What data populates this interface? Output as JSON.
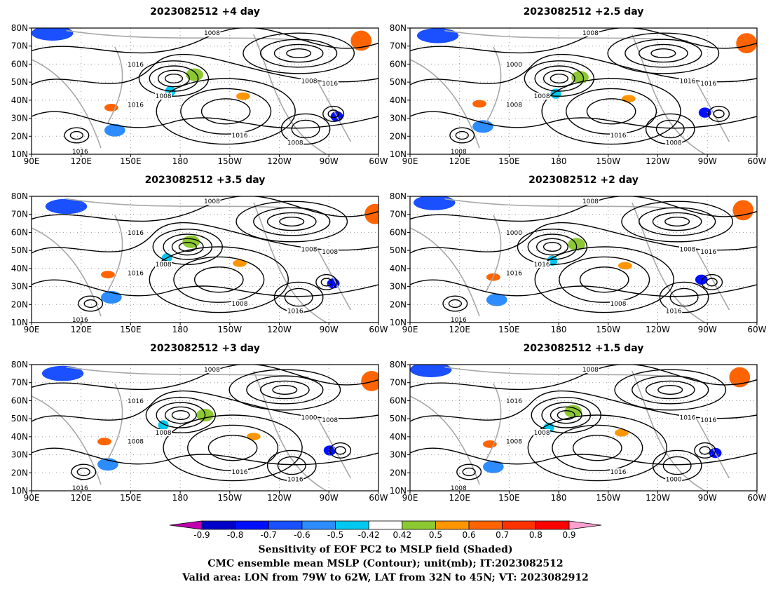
{
  "colors": {
    "contour": "#000000",
    "coast": "#a8a8a8",
    "grid": "#999999",
    "levels": [
      "#c000b0",
      "#0000c8",
      "#0010ff",
      "#1a50ff",
      "#2d8cff",
      "#00c8f0",
      "#ffffff",
      "#8cc832",
      "#ff9600",
      "#ff6400",
      "#ff3200",
      "#ff0000",
      "#ffa0d0"
    ]
  },
  "axes": {
    "lat_labels": [
      "80N",
      "70N",
      "60N",
      "50N",
      "40N",
      "30N",
      "20N",
      "10N"
    ],
    "lon_labels": [
      "90E",
      "120E",
      "150E",
      "180",
      "150W",
      "120W",
      "90W",
      "60W"
    ]
  },
  "panels": [
    {
      "title": "2023082512 +4 day",
      "contour_labels": [
        "1008",
        "1016",
        "1016",
        "1016",
        "1008",
        "1016",
        "1016",
        "1008",
        "1008"
      ]
    },
    {
      "title": "2023082512 +2.5 day",
      "contour_labels": [
        "1008",
        "1000",
        "1008",
        "1016",
        "1008",
        "1016",
        "1008",
        "1016",
        "1008"
      ]
    },
    {
      "title": "2023082512 +3.5 day",
      "contour_labels": [
        "1008",
        "1016",
        "1016",
        "1008",
        "1016",
        "1008",
        "1016",
        "1008",
        "1008"
      ]
    },
    {
      "title": "2023082512 +2 day",
      "contour_labels": [
        "1008",
        "1000",
        "1016",
        "1008",
        "1016",
        "1016",
        "1016",
        "1008",
        "1016"
      ]
    },
    {
      "title": "2023082512 +3 day",
      "contour_labels": [
        "1008",
        "1016",
        "1008",
        "1016",
        "1016",
        "1008",
        "1016",
        "1000",
        "1008"
      ]
    },
    {
      "title": "2023082512 +1.5 day",
      "contour_labels": [
        "1008",
        "1016",
        "1008",
        "1016",
        "1000",
        "1016",
        "1008",
        "1016",
        "1008"
      ]
    }
  ],
  "colorbar": {
    "labels": [
      "-0.9",
      "-0.8",
      "-0.7",
      "-0.6",
      "-0.5",
      "-0.42",
      "0.42",
      "0.5",
      "0.6",
      "0.7",
      "0.8",
      "0.9"
    ]
  },
  "caption": {
    "line1": "Sensitivity of EOF PC2 to MSLP field (Shaded)",
    "line2": "CMC ensemble mean MSLP (Contour); unit(mb); IT:2023082512",
    "line3": "Valid area: LON from 79W to 62W, LAT from 32N to 45N; VT: 2023082912"
  }
}
